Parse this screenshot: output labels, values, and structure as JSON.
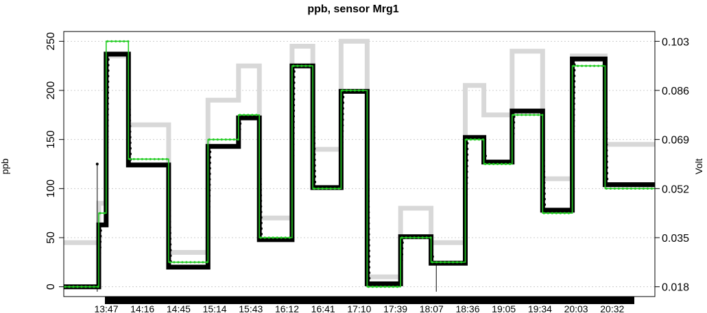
{
  "chart_data": {
    "type": "line",
    "title": "ppb, sensor Mrg1",
    "ylabel": "ppb",
    "y2label": "Volt",
    "ylim": [
      -10,
      260
    ],
    "yticks": [
      0,
      50,
      100,
      150,
      200,
      250
    ],
    "y2ticks": [
      "0.018",
      "0.035",
      "0.052",
      "0.069",
      "0.086",
      "0.103"
    ],
    "xtick_labels": [
      "13:47",
      "14:16",
      "14:45",
      "15:14",
      "15:43",
      "16:12",
      "16:41",
      "17:10",
      "17:39",
      "18:07",
      "18:36",
      "19:05",
      "19:34",
      "20:03",
      "20:32"
    ],
    "x_range_hours": [
      13.05,
      21.0
    ],
    "grid": true,
    "colors": {
      "reference": "#22cc22",
      "measured": "#000000",
      "raw_volt": "#d8d8d8"
    },
    "series": [
      {
        "role": "reference",
        "type": "step",
        "x": [
          13.05,
          13.52,
          13.62,
          13.92,
          14.46,
          14.99,
          15.4,
          15.68,
          16.12,
          16.4,
          16.78,
          17.13,
          17.58,
          17.99,
          18.45,
          18.7,
          19.08,
          19.49,
          19.89,
          20.33,
          21.0
        ],
        "y": [
          0,
          75,
          250,
          130,
          25,
          150,
          175,
          50,
          225,
          100,
          200,
          0,
          50,
          25,
          150,
          125,
          175,
          75,
          225,
          100,
          0
        ]
      },
      {
        "role": "measured",
        "type": "step",
        "x": [
          13.05,
          13.52,
          13.62,
          13.92,
          14.46,
          14.99,
          15.4,
          15.68,
          16.12,
          16.4,
          16.78,
          17.13,
          17.58,
          17.99,
          18.45,
          18.7,
          19.08,
          19.49,
          19.89,
          20.33,
          21.0
        ],
        "y": [
          0,
          63,
          237,
          124,
          20,
          143,
          172,
          48,
          225,
          101,
          199,
          3,
          51,
          24,
          152,
          127,
          179,
          78,
          232,
          104,
          3
        ]
      },
      {
        "role": "raw_volt",
        "type": "step",
        "x": [
          13.05,
          13.52,
          13.62,
          13.92,
          14.46,
          14.99,
          15.4,
          15.68,
          16.12,
          16.4,
          16.78,
          17.13,
          17.58,
          17.99,
          18.45,
          18.7,
          19.08,
          19.49,
          19.89,
          20.33,
          21.0
        ],
        "y": [
          45,
          85,
          235,
          165,
          35,
          190,
          225,
          70,
          245,
          140,
          250,
          10,
          80,
          45,
          205,
          175,
          240,
          110,
          235,
          145,
          10
        ]
      }
    ],
    "spikes": [
      {
        "x": 13.5,
        "y_low": -5,
        "y_high": 125
      },
      {
        "x": 18.06,
        "y_low": -5,
        "y_high": 25
      }
    ]
  }
}
